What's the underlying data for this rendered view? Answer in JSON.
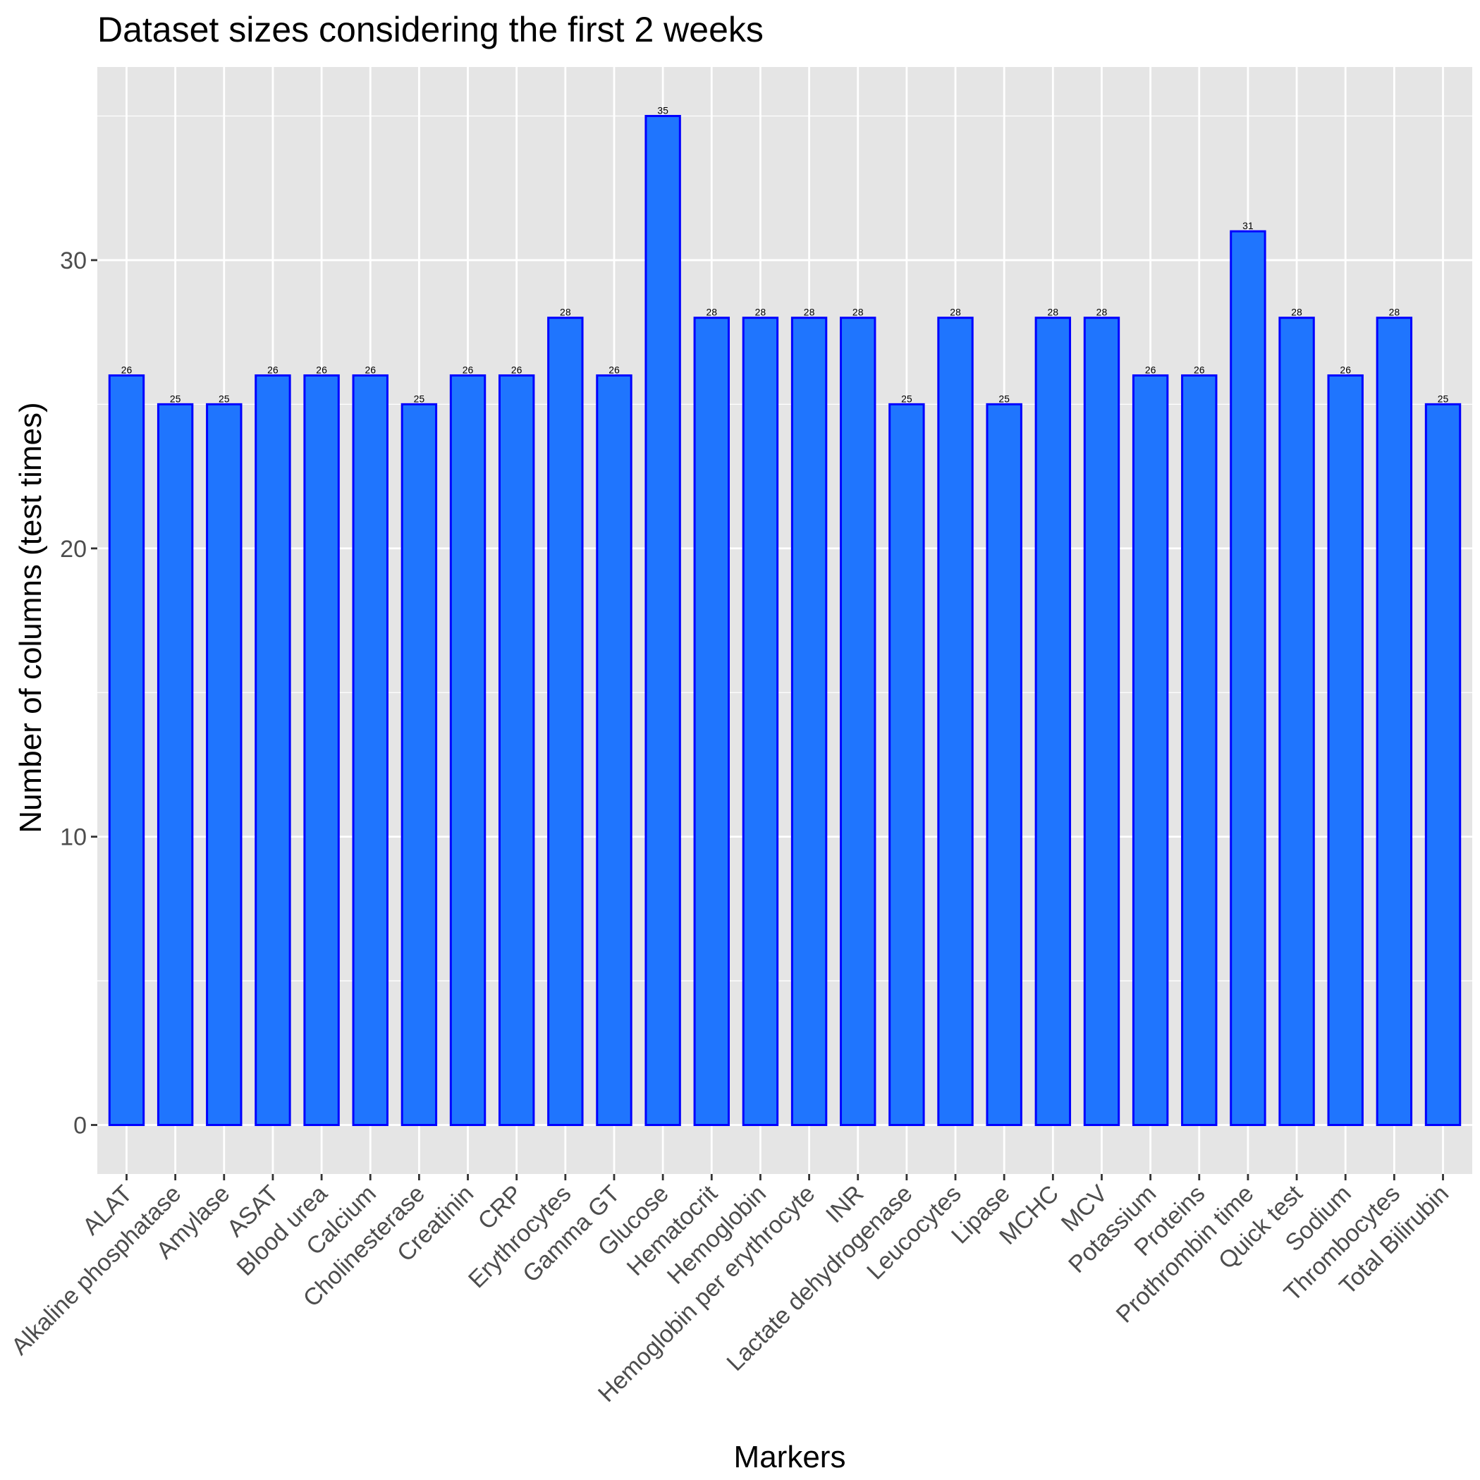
{
  "chart_data": {
    "type": "bar",
    "title": "Dataset sizes considering the first 2 weeks",
    "xlabel": "Markers",
    "ylabel": "Number of columns (test times)",
    "ylim": [
      -1.7,
      36.7
    ],
    "yticks": [
      0,
      10,
      20,
      30
    ],
    "grid": true,
    "legend": "none",
    "colors": {
      "panel": "#E5E5E5",
      "grid": "#FFFFFF",
      "bar_fill": "#1F75FE",
      "bar_outline": "#0000FF",
      "text": "#000000",
      "tick_text": "#4D4D4D",
      "tick": "#333333"
    },
    "categories": [
      "ALAT",
      "Alkaline phosphatase",
      "Amylase",
      "ASAT",
      "Blood urea",
      "Calcium",
      "Cholinesterase",
      "Creatinin",
      "CRP",
      "Erythrocytes",
      "Gamma GT",
      "Glucose",
      "Hematocrit",
      "Hemoglobin",
      "Hemoglobin per erythrocyte",
      "INR",
      "Lactate dehydrogenase",
      "Leucocytes",
      "Lipase",
      "MCHC",
      "MCV",
      "Potassium",
      "Proteins",
      "Prothrombin time",
      "Quick test",
      "Sodium",
      "Thrombocytes",
      "Total Bilirubin"
    ],
    "values": [
      26,
      25,
      25,
      26,
      26,
      26,
      25,
      26,
      26,
      28,
      26,
      35,
      28,
      28,
      28,
      28,
      25,
      28,
      25,
      28,
      28,
      26,
      26,
      31,
      28,
      26,
      28,
      25
    ]
  }
}
